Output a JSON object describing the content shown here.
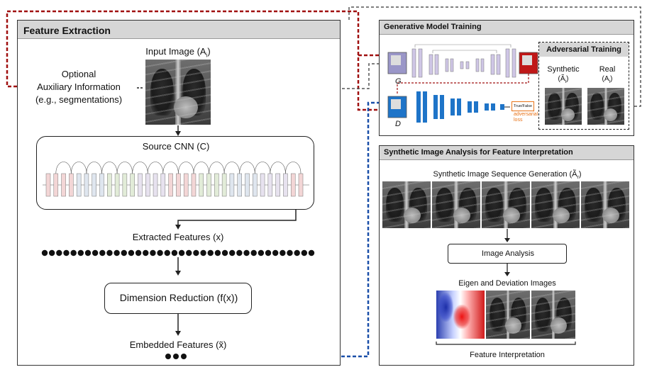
{
  "feature_extraction": {
    "title": "Feature Extraction",
    "input_image": "Input Image (A",
    "input_image_sub": "i",
    "input_image_close": ")",
    "aux_line1": "Optional",
    "aux_line2": "Auxiliary Information",
    "aux_line3": "(e.g., segmentations)",
    "source_cnn": "Source CNN (C)",
    "extracted_features": "Extracted Features (x)",
    "dimension_reduction": "Dimension Reduction (f(x))",
    "embedded_features": "Embedded Features (x̃)"
  },
  "generative": {
    "title": "Generative Model Training",
    "g_label": "G",
    "d_label": "D",
    "true_false": "True/False",
    "adversarial_loss_1": "adversarial",
    "adversarial_loss_2": "loss",
    "adversarial_training": "Adversarial Training",
    "synthetic": "Synthetic",
    "synthetic_sym": "(Ã",
    "synthetic_sub": "i",
    "synthetic_close": ")",
    "real": "Real",
    "real_sym": "(A",
    "real_sub": "i",
    "real_close": ")"
  },
  "synthetic_analysis": {
    "title": "Synthetic Image Analysis for Feature Interpretation",
    "sequence": "Synthetic Image Sequence Generation (Ã",
    "sequence_sub": "r",
    "sequence_close": ")",
    "image_analysis": "Image Analysis",
    "eigen_deviation": "Eigen and Deviation Images",
    "feature_interpretation": "Feature Interpretation"
  },
  "colors": {
    "red_dashed": "#a01010",
    "blue_dashed": "#1a4fa8",
    "gray_dashed": "#555555",
    "header_bg": "#d6d6d6",
    "generator_purple": "#b9a9d6",
    "discriminator_blue": "#1e74c8",
    "loss_orange": "#e8741a"
  }
}
